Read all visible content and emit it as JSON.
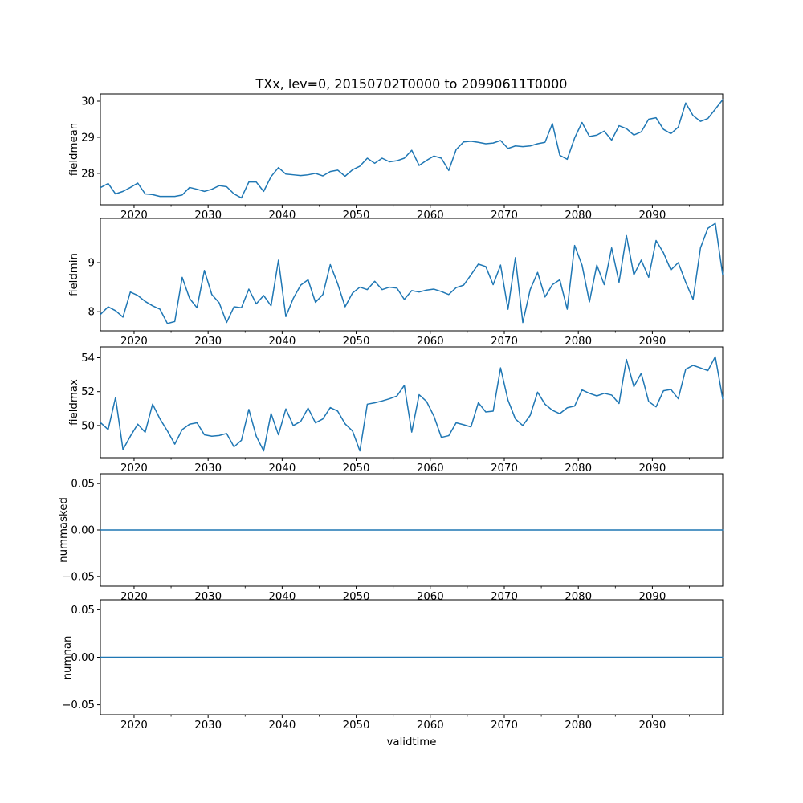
{
  "figure": {
    "title": "TXx, lev=0, 20150702T0000 to 20990611T0000",
    "xlabel": "validtime",
    "line_color": "#1f77b4",
    "spine_color": "#000000",
    "text_color": "#000000"
  },
  "chart_data": {
    "type": "line",
    "title": "TXx, lev=0, 20150702T0000 to 20990611T0000",
    "xlabel": "validtime",
    "legend": false,
    "grid": false,
    "x": {
      "start_year": 2015,
      "end_year": 2099,
      "count": 85,
      "step": 1,
      "point_offset": 0.5,
      "xlim": [
        2015.45,
        2099.5
      ],
      "major_ticks": [
        2020,
        2030,
        2040,
        2050,
        2060,
        2070,
        2080,
        2090
      ],
      "minor_tick_step": 5
    },
    "panels": [
      {
        "name": "fieldmean",
        "ylabel": "fieldmean",
        "ylim": [
          27.13,
          30.2
        ],
        "yticks": [
          28,
          29,
          30
        ],
        "ytick_labels": [
          "28",
          "29",
          "30"
        ],
        "values": [
          27.61,
          27.72,
          27.43,
          27.5,
          27.61,
          27.73,
          27.43,
          27.41,
          27.36,
          27.36,
          27.36,
          27.4,
          27.61,
          27.56,
          27.5,
          27.56,
          27.66,
          27.63,
          27.43,
          27.32,
          27.76,
          27.76,
          27.5,
          27.91,
          28.16,
          27.98,
          27.96,
          27.94,
          27.96,
          28.0,
          27.93,
          28.05,
          28.09,
          27.92,
          28.1,
          28.2,
          28.42,
          28.28,
          28.42,
          28.32,
          28.35,
          28.42,
          28.64,
          28.22,
          28.36,
          28.48,
          28.42,
          28.08,
          28.66,
          28.87,
          28.89,
          28.86,
          28.82,
          28.84,
          28.91,
          28.69,
          28.76,
          28.74,
          28.76,
          28.82,
          28.86,
          29.38,
          28.5,
          28.39,
          28.98,
          29.41,
          29.02,
          29.06,
          29.17,
          28.92,
          29.32,
          29.24,
          29.06,
          29.15,
          29.5,
          29.54,
          29.22,
          29.1,
          29.28,
          29.95,
          29.6,
          29.44,
          29.52,
          29.78,
          30.04
        ]
      },
      {
        "name": "fieldmin",
        "ylabel": "fieldmin",
        "ylim": [
          7.61,
          9.9
        ],
        "yticks": [
          8,
          9
        ],
        "ytick_labels": [
          "8",
          "9"
        ],
        "values": [
          7.95,
          8.1,
          8.02,
          7.89,
          8.4,
          8.33,
          8.21,
          8.12,
          8.05,
          7.76,
          7.8,
          8.7,
          8.27,
          8.08,
          8.84,
          8.35,
          8.18,
          7.78,
          8.1,
          8.08,
          8.46,
          8.16,
          8.33,
          8.12,
          9.05,
          7.9,
          8.27,
          8.54,
          8.65,
          8.19,
          8.35,
          8.96,
          8.57,
          8.1,
          8.38,
          8.5,
          8.45,
          8.62,
          8.45,
          8.5,
          8.48,
          8.25,
          8.43,
          8.4,
          8.44,
          8.46,
          8.41,
          8.35,
          8.49,
          8.54,
          8.75,
          8.97,
          8.92,
          8.55,
          8.95,
          8.05,
          9.1,
          7.78,
          8.45,
          8.8,
          8.3,
          8.55,
          8.65,
          8.05,
          9.35,
          8.95,
          8.2,
          8.95,
          8.55,
          9.3,
          8.6,
          9.55,
          8.75,
          9.05,
          8.7,
          9.45,
          9.2,
          8.85,
          9.0,
          8.6,
          8.25,
          9.3,
          9.7,
          9.8,
          8.75
        ]
      },
      {
        "name": "fieldmax",
        "ylabel": "fieldmax",
        "ylim": [
          48.1,
          54.64
        ],
        "yticks": [
          50,
          52,
          54
        ],
        "ytick_labels": [
          "50",
          "52",
          "54"
        ],
        "values": [
          50.16,
          49.76,
          51.66,
          48.58,
          49.37,
          50.08,
          49.6,
          51.26,
          50.39,
          49.68,
          48.9,
          49.76,
          50.08,
          50.16,
          49.45,
          49.37,
          49.41,
          49.53,
          48.74,
          49.13,
          50.95,
          49.37,
          48.5,
          50.71,
          49.45,
          50.98,
          50.0,
          50.24,
          51.03,
          50.16,
          50.39,
          51.06,
          50.85,
          50.1,
          49.68,
          48.5,
          51.26,
          51.34,
          51.45,
          51.58,
          51.74,
          52.37,
          49.61,
          51.82,
          51.42,
          50.55,
          49.3,
          49.4,
          50.16,
          50.05,
          49.92,
          51.35,
          50.8,
          50.85,
          53.4,
          51.5,
          50.39,
          50.0,
          50.6,
          51.97,
          51.26,
          50.9,
          50.7,
          51.05,
          51.15,
          52.1,
          51.9,
          51.75,
          51.9,
          51.8,
          51.3,
          53.9,
          52.29,
          53.08,
          51.42,
          51.1,
          52.05,
          52.13,
          51.58,
          53.32,
          53.55,
          53.4,
          53.24,
          54.06,
          51.58
        ]
      },
      {
        "name": "nummasked",
        "ylabel": "nummasked",
        "ylim": [
          -0.0605,
          0.0605
        ],
        "yticks": [
          -0.05,
          0.0,
          0.05
        ],
        "ytick_labels": [
          "−0.05",
          "0.00",
          "0.05"
        ],
        "constant": 0.0
      },
      {
        "name": "numnan",
        "ylabel": "numnan",
        "ylim": [
          -0.0605,
          0.0605
        ],
        "yticks": [
          -0.05,
          0.0,
          0.05
        ],
        "ytick_labels": [
          "−0.05",
          "0.00",
          "0.05"
        ],
        "constant": 0.0
      }
    ]
  }
}
